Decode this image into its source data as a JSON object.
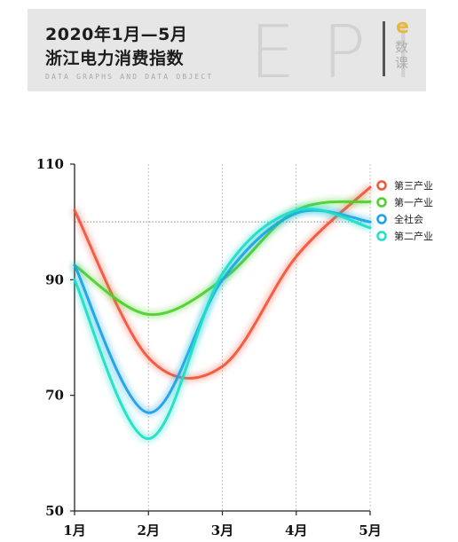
{
  "banner": {
    "title_line1": "2020年1月—5月",
    "title_line2": "浙江电力消费指数",
    "subtitle": "DATA GRAPHS AND DATA OBJECT",
    "watermark": "EPI",
    "brand_letter": "e",
    "brand_text": "数课"
  },
  "colors": {
    "第三产业": "#f4553a",
    "第一产业": "#4fd12c",
    "全社会": "#1aa0ea",
    "第二产业": "#1fe0c8"
  },
  "chart_data": {
    "type": "line",
    "title": "",
    "xlabel": "",
    "ylabel": "",
    "categories": [
      "1月",
      "2月",
      "3月",
      "4月",
      "5月"
    ],
    "ylim": [
      50,
      110
    ],
    "yticks": [
      50,
      70,
      90,
      110
    ],
    "reference_line": 100,
    "grid": "vertical dotted",
    "legend_position": "right",
    "series": [
      {
        "name": "第三产业",
        "values": [
          102,
          76.5,
          75,
          94,
          106
        ]
      },
      {
        "name": "第一产业",
        "values": [
          92.5,
          84,
          90,
          102,
          103.5
        ]
      },
      {
        "name": "全社会",
        "values": [
          92.5,
          67,
          90,
          101.5,
          100
        ]
      },
      {
        "name": "第二产业",
        "values": [
          90,
          62.5,
          91,
          102,
          99
        ]
      }
    ]
  }
}
